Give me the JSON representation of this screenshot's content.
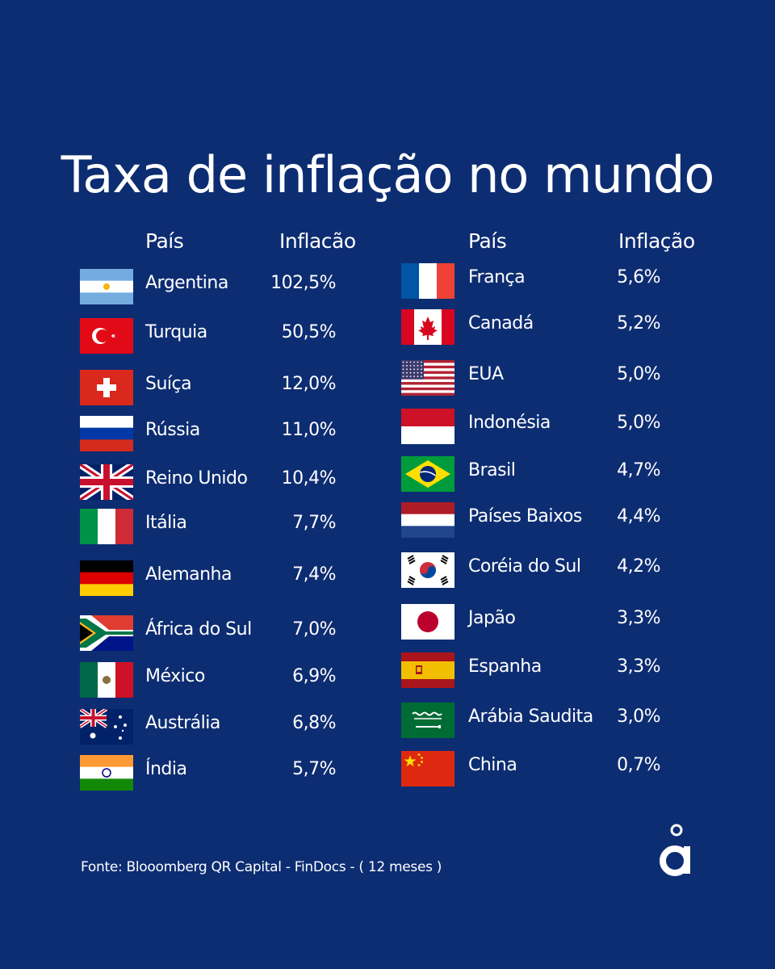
{
  "title": "Taxa de inflação no mundo",
  "headers": {
    "left_country": "País",
    "left_inflation": "Inflacão",
    "right_country": "País",
    "right_inflation": "Inflação"
  },
  "left": [
    {
      "flag": "argentina-flag-icon",
      "country": "Argentina",
      "inflation": "102,5%",
      "value": 102.5
    },
    {
      "flag": "turkey-flag-icon",
      "country": "Turquia",
      "inflation": "50,5%",
      "value": 50.5
    },
    {
      "flag": "switzerland-flag-icon",
      "country": "Suíça",
      "inflation": "12,0%",
      "value": 12.0
    },
    {
      "flag": "russia-flag-icon",
      "country": "Rússia",
      "inflation": "11,0%",
      "value": 11.0
    },
    {
      "flag": "uk-flag-icon",
      "country": "Reino Unido",
      "inflation": "10,4%",
      "value": 10.4
    },
    {
      "flag": "italy-flag-icon",
      "country": "Itália",
      "inflation": "7,7%",
      "value": 7.7
    },
    {
      "flag": "germany-flag-icon",
      "country": "Alemanha",
      "inflation": "7,4%",
      "value": 7.4
    },
    {
      "flag": "south-africa-flag-icon",
      "country": "África do Sul",
      "inflation": "7,0%",
      "value": 7.0
    },
    {
      "flag": "mexico-flag-icon",
      "country": "México",
      "inflation": "6,9%",
      "value": 6.9
    },
    {
      "flag": "australia-flag-icon",
      "country": "Austrália",
      "inflation": "6,8%",
      "value": 6.8
    },
    {
      "flag": "india-flag-icon",
      "country": "Índia",
      "inflation": "5,7%",
      "value": 5.7
    }
  ],
  "right": [
    {
      "flag": "france-flag-icon",
      "country": "França",
      "inflation": "5,6%",
      "value": 5.6
    },
    {
      "flag": "canada-flag-icon",
      "country": "Canadá",
      "inflation": "5,2%",
      "value": 5.2
    },
    {
      "flag": "usa-flag-icon",
      "country": "EUA",
      "inflation": "5,0%",
      "value": 5.0
    },
    {
      "flag": "indonesia-flag-icon",
      "country": "Indonésia",
      "inflation": "5,0%",
      "value": 5.0
    },
    {
      "flag": "brazil-flag-icon",
      "country": "Brasil",
      "inflation": "4,7%",
      "value": 4.7
    },
    {
      "flag": "netherlands-flag-icon",
      "country": "Países Baixos",
      "inflation": "4,4%",
      "value": 4.4
    },
    {
      "flag": "south-korea-flag-icon",
      "country": "Coréia do Sul",
      "inflation": "4,2%",
      "value": 4.2
    },
    {
      "flag": "japan-flag-icon",
      "country": "Japão",
      "inflation": "3,3%",
      "value": 3.3
    },
    {
      "flag": "spain-flag-icon",
      "country": "Espanha",
      "inflation": "3,3%",
      "value": 3.3
    },
    {
      "flag": "saudi-arabia-flag-icon",
      "country": "Arábia Saudita",
      "inflation": "3,0%",
      "value": 3.0
    },
    {
      "flag": "china-flag-icon",
      "country": "China",
      "inflation": "0,7%",
      "value": 0.7
    }
  ],
  "footer": "Fonte: Blooomberg QR Capital - FinDocs  - ( 12 meses )",
  "logo_icon": "a-ring-logo-icon",
  "colors": {
    "background": "#0d2d72",
    "text": "#ffffff"
  }
}
